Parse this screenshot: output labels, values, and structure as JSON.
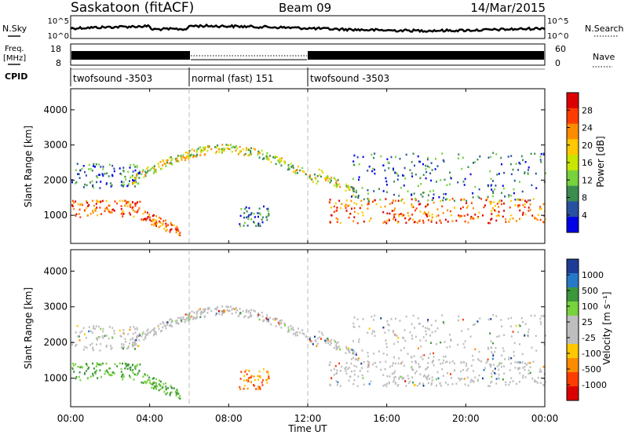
{
  "header": {
    "station": "Saskatoon (fitACF)",
    "beam": "Beam 09",
    "date": "14/Mar/2015"
  },
  "top_panels": {
    "nsky_label": "N.Sky",
    "nsky_ticks": [
      "10^5",
      "10^0"
    ],
    "nsearch_label": "N.Search",
    "freq_label_1": "Freq.",
    "freq_label_2": "[MHz]",
    "freq_ticks": [
      "18",
      "8"
    ],
    "nave_ticks": [
      "60",
      "0"
    ],
    "nave_label": "Nave",
    "cpid_label": "CPID",
    "cpid_segments": [
      {
        "label": "twofsound -3503",
        "start": 0,
        "end": 6
      },
      {
        "label": "normal (fast) 151",
        "start": 6,
        "end": 12
      },
      {
        "label": "twofsound -3503",
        "start": 12,
        "end": 24
      }
    ]
  },
  "chart_data": [
    {
      "type": "heatmap",
      "panel": "power",
      "ylabel": "Slant Range [km]",
      "yticks": [
        1000,
        2000,
        3000,
        4000
      ],
      "ylim": [
        200,
        4600
      ],
      "xlim": [
        0,
        24
      ],
      "colorbar_label": "Power [dB]",
      "colorbar_ticks": [
        "28",
        "24",
        "20",
        "16",
        "12",
        "8",
        "4"
      ],
      "colorbar_colors": [
        "#dc0000",
        "#ff3c00",
        "#ff8c00",
        "#ffc800",
        "#c8e600",
        "#78d23c",
        "#3c8c50",
        "#2850a0",
        "#0000e6"
      ]
    },
    {
      "type": "heatmap",
      "panel": "velocity",
      "ylabel": "Slant Range [km]",
      "yticks": [
        1000,
        2000,
        3000,
        4000
      ],
      "ylim": [
        200,
        4600
      ],
      "xlim": [
        0,
        24
      ],
      "colorbar_label": "Velocity [m s⁻¹]",
      "colorbar_ticks": [
        "1000",
        "500",
        "100",
        "25",
        "-25",
        "-100",
        "-500",
        "-1000"
      ],
      "colorbar_colors": [
        "#1e3c96",
        "#2878c8",
        "#3c963c",
        "#78d23c",
        "#bebebe",
        "#bebebe",
        "#ffc800",
        "#ff8c00",
        "#ff3c00",
        "#dc0000"
      ]
    }
  ],
  "xaxis": {
    "ticks": [
      "00:00",
      "04:00",
      "08:00",
      "12:00",
      "16:00",
      "20:00",
      "00:00"
    ],
    "label": "Time UT"
  }
}
